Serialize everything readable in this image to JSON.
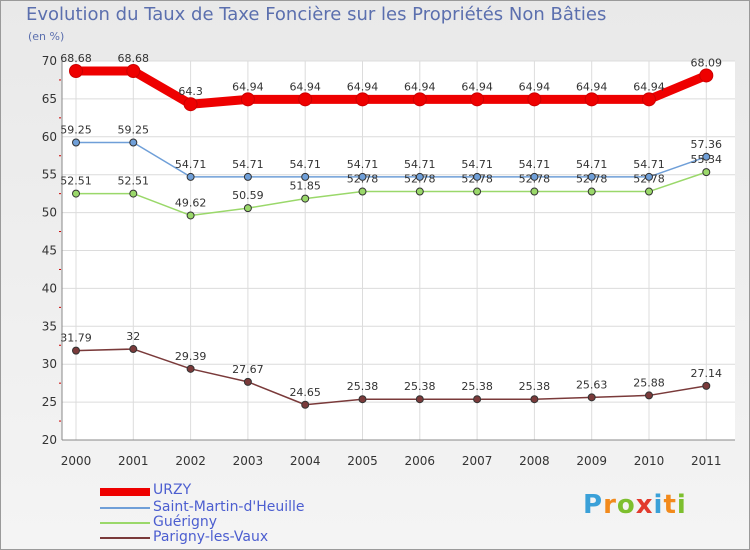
{
  "header": {
    "title": "Evolution du Taux de Taxe Foncière sur les Propriétés Non Bâties",
    "unit": "(en %)"
  },
  "logo": {
    "letters": [
      "P",
      "r",
      "o",
      "x",
      "i",
      "t",
      "i"
    ],
    "colors": [
      "#3aa0d8",
      "#f28a1c",
      "#7dbf2e",
      "#e23b2e",
      "#3aa0d8",
      "#f28a1c",
      "#7dbf2e"
    ]
  },
  "chart_data": {
    "type": "line",
    "title": "Evolution du Taux de Taxe Foncière sur les Propriétés Non Bâties",
    "ylabel": "(en %)",
    "xlabel": "",
    "x": [
      "2000",
      "2001",
      "2002",
      "2003",
      "2004",
      "2005",
      "2006",
      "2007",
      "2008",
      "2009",
      "2010",
      "2011"
    ],
    "ylim": [
      20,
      70
    ],
    "yticks": [
      20,
      25,
      30,
      35,
      40,
      45,
      50,
      55,
      60,
      65,
      70
    ],
    "grid": true,
    "legend": "bottom-left",
    "series": [
      {
        "name": "URZY",
        "color": "#ee0000",
        "values": [
          68.68,
          68.68,
          64.3,
          64.94,
          64.94,
          64.94,
          64.94,
          64.94,
          64.94,
          64.94,
          64.94,
          68.09
        ],
        "labels": [
          "68.68",
          "68.68",
          "64.3",
          "64.94",
          "64.94",
          "64.94",
          "64.94",
          "64.94",
          "64.94",
          "64.94",
          "64.94",
          "68.09"
        ]
      },
      {
        "name": "Saint-Martin-d'Heuille",
        "color": "#6f9fd8",
        "values": [
          59.25,
          59.25,
          54.71,
          54.71,
          54.71,
          54.71,
          54.71,
          54.71,
          54.71,
          54.71,
          54.71,
          57.36
        ],
        "labels": [
          "59.25",
          "59.25",
          "54.71",
          "54.71",
          "54.71",
          "54.71",
          "54.71",
          "54.71",
          "54.71",
          "54.71",
          "54.71",
          "57.36"
        ]
      },
      {
        "name": "Guérigny",
        "color": "#9ad86a",
        "values": [
          52.51,
          52.51,
          49.62,
          50.59,
          51.85,
          52.78,
          52.78,
          52.78,
          52.78,
          52.78,
          52.78,
          55.34
        ],
        "labels": [
          "52.51",
          "52.51",
          "49.62",
          "50.59",
          "51.85",
          "52.78",
          "52.78",
          "52.78",
          "52.78",
          "52.78",
          "52.78",
          "55.34"
        ]
      },
      {
        "name": "Parigny-les-Vaux",
        "color": "#7a3a3a",
        "values": [
          31.79,
          32,
          29.39,
          27.67,
          24.65,
          25.38,
          25.38,
          25.38,
          25.38,
          25.63,
          25.88,
          27.14
        ],
        "labels": [
          "31.79",
          "32",
          "29.39",
          "27.67",
          "24.65",
          "25.38",
          "25.38",
          "25.38",
          "25.38",
          "25.63",
          "25.88",
          "27.14"
        ]
      }
    ]
  }
}
